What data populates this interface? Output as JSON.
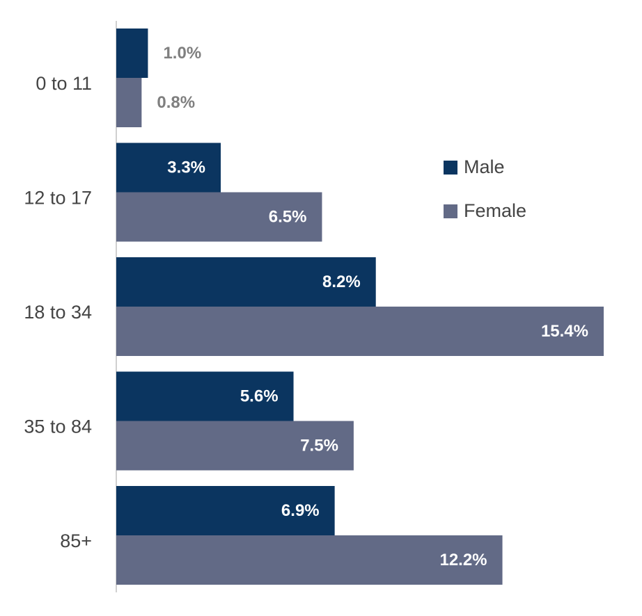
{
  "chart_data": {
    "type": "bar",
    "orientation": "horizontal",
    "title": "",
    "xlabel": "",
    "ylabel": "",
    "categories": [
      "0 to 11",
      "12 to 17",
      "18 to 34",
      "35 to 84",
      "85+"
    ],
    "series": [
      {
        "name": "Male",
        "color": "#0b3560",
        "values": [
          1.0,
          3.3,
          8.2,
          5.6,
          6.9
        ],
        "labels": [
          "1.0%",
          "3.3%",
          "8.2%",
          "5.6%",
          "6.9%"
        ]
      },
      {
        "name": "Female",
        "color": "#626a86",
        "values": [
          0.8,
          6.5,
          15.4,
          7.5,
          12.2
        ],
        "labels": [
          "0.8%",
          "6.5%",
          "15.4%",
          "7.5%",
          "12.2%"
        ]
      }
    ],
    "value_unit": "%",
    "xlim": [
      0,
      15.4
    ],
    "grid": false,
    "legend_position": "right",
    "inside_label_color": "#ffffff",
    "outside_label_color": "#7f7f7f"
  }
}
